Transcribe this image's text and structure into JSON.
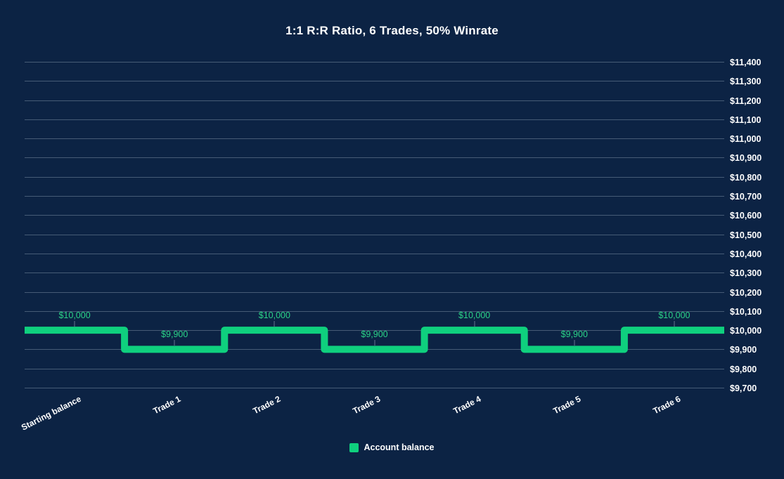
{
  "title": "1:1 R:R Ratio, 6 Trades, 50% Winrate",
  "legend": {
    "label": "Account balance"
  },
  "colors": {
    "background": "#0c2344",
    "line": "#0fd07e",
    "data_label": "#2bd287",
    "grid": "rgba(186,200,218,0.34)",
    "text": "#ffffff"
  },
  "chart_data": {
    "type": "line",
    "subtype": "step",
    "title": "1:1 R:R Ratio, 6 Trades, 50% Winrate",
    "categories": [
      "Starting balance",
      "Trade 1",
      "Trade 2",
      "Trade 3",
      "Trade 4",
      "Trade 5",
      "Trade 6"
    ],
    "series": [
      {
        "name": "Account balance",
        "values": [
          10000,
          9900,
          10000,
          9900,
          10000,
          9900,
          10000
        ]
      }
    ],
    "data_labels": [
      "$10,000",
      "$9,900",
      "$10,000",
      "$9,900",
      "$10,000",
      "$9,900",
      "$10,000"
    ],
    "ylim": [
      9700,
      11400
    ],
    "y_tick_step": 100,
    "y_tick_labels": [
      "$9,700",
      "$9,800",
      "$9,900",
      "$10,000",
      "$10,100",
      "$10,200",
      "$10,300",
      "$10,400",
      "$10,500",
      "$10,600",
      "$10,700",
      "$10,800",
      "$10,900",
      "$11,000",
      "$11,100",
      "$11,200",
      "$11,300",
      "$11,400"
    ],
    "grid": true,
    "y_axis_side": "right",
    "legend_position": "bottom",
    "xlabel": "",
    "ylabel": ""
  }
}
